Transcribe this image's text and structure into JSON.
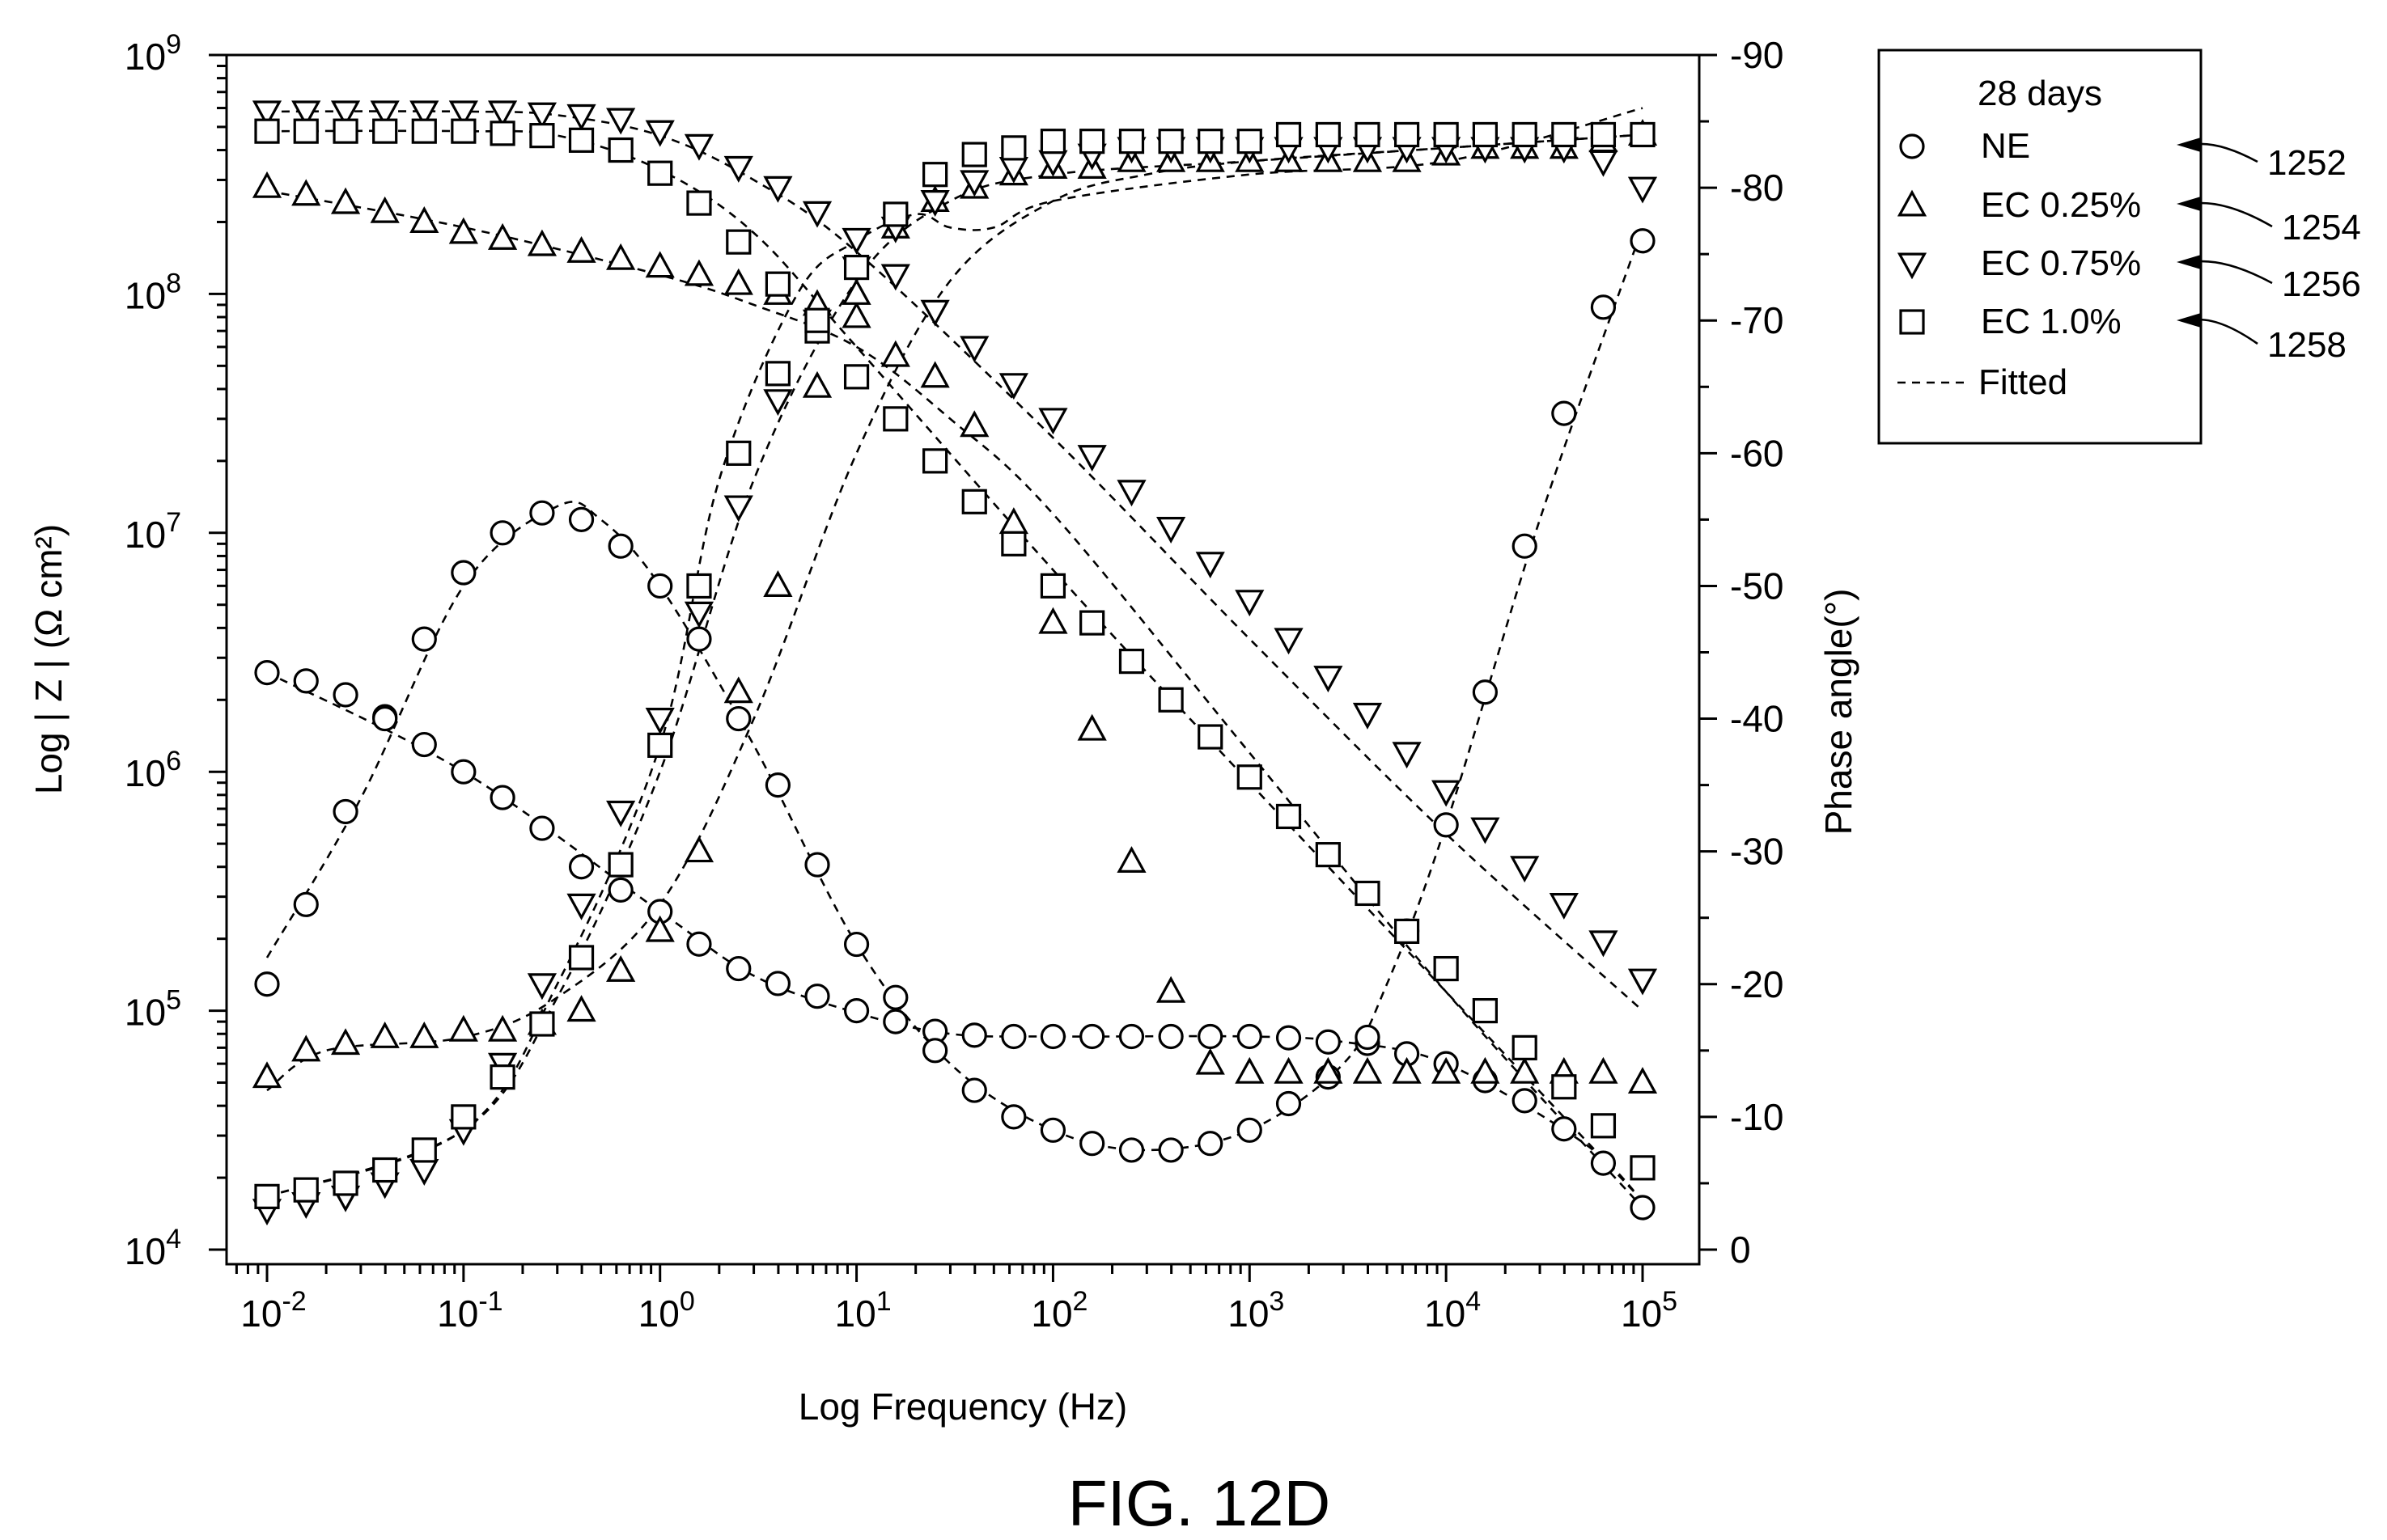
{
  "chart_data": {
    "type": "scatter",
    "title": "",
    "xlabel": "Log Frequency (Hz)",
    "ylabel": "Log | Z | (Ω cm²)",
    "y2label": "Phase angle(°)",
    "xscale": "log",
    "yscale": "log",
    "xlim": [
      0.01,
      100000
    ],
    "ylim": [
      10000,
      1000000000
    ],
    "y2lim": [
      0,
      -90
    ],
    "x_ticks": [
      {
        "base": "10",
        "exp": "-2",
        "value": 0.01
      },
      {
        "base": "10",
        "exp": "-1",
        "value": 0.1
      },
      {
        "base": "10",
        "exp": "0",
        "value": 1
      },
      {
        "base": "10",
        "exp": "1",
        "value": 10
      },
      {
        "base": "10",
        "exp": "2",
        "value": 100
      },
      {
        "base": "10",
        "exp": "3",
        "value": 1000
      },
      {
        "base": "10",
        "exp": "4",
        "value": 10000
      },
      {
        "base": "10",
        "exp": "5",
        "value": 100000
      }
    ],
    "y_ticks": [
      {
        "base": "10",
        "exp": "4",
        "value": 10000
      },
      {
        "base": "10",
        "exp": "5",
        "value": 100000
      },
      {
        "base": "10",
        "exp": "6",
        "value": 1000000
      },
      {
        "base": "10",
        "exp": "7",
        "value": 10000000
      },
      {
        "base": "10",
        "exp": "8",
        "value": 100000000
      },
      {
        "base": "10",
        "exp": "9",
        "value": 1000000000
      }
    ],
    "y2_ticks": [
      "0",
      "-10",
      "-20",
      "-30",
      "-40",
      "-50",
      "-60",
      "-70",
      "-80",
      "-90"
    ],
    "legend": {
      "title": "28 days",
      "position": "outside-top-right",
      "entries": [
        {
          "marker": "circle",
          "label": "NE",
          "ref": "1252"
        },
        {
          "marker": "triangle-up",
          "label": "EC 0.25%",
          "ref": "1254"
        },
        {
          "marker": "triangle-down",
          "label": "EC 0.75%",
          "ref": "1256"
        },
        {
          "marker": "square",
          "label": "EC 1.0%",
          "ref": "1258"
        },
        {
          "marker": "dashed-line",
          "label": "Fitted",
          "ref": ""
        }
      ]
    },
    "x": [
      0.01,
      0.0158,
      0.0251,
      0.0398,
      0.0631,
      0.1,
      0.158,
      0.251,
      0.398,
      0.631,
      1,
      1.58,
      2.51,
      3.98,
      6.31,
      10,
      15.8,
      25.1,
      39.8,
      63.1,
      100,
      158,
      251,
      398,
      631,
      1000,
      1580,
      2510,
      3980,
      6310,
      10000,
      15800,
      25100,
      39800,
      63100,
      100000
    ],
    "series": [
      {
        "name": "NE",
        "marker": "circle",
        "axis": "left",
        "measure": "|Z|",
        "values": [
          2600000,
          2400000,
          2100000,
          1700000,
          1300000,
          1000000,
          780000,
          580000,
          400000,
          320000,
          260000,
          190000,
          150000,
          130000,
          115000,
          100000,
          90000,
          82000,
          79000,
          78000,
          78000,
          78000,
          78000,
          78000,
          78000,
          78000,
          77000,
          74000,
          73000,
          66000,
          60000,
          51000,
          42000,
          32000,
          23000,
          15000
        ]
      },
      {
        "name": "NE",
        "marker": "circle",
        "axis": "right",
        "measure": "phase",
        "values": [
          -20,
          -26,
          -33,
          -40,
          -46,
          -51,
          -54,
          -55.5,
          -55,
          -53,
          -50,
          -46,
          -40,
          -35,
          -29,
          -23,
          -19,
          -15,
          -12,
          -10,
          -9,
          -8,
          -7.5,
          -7.5,
          -8,
          -9,
          -11,
          -13,
          -16,
          -24,
          -32,
          -42,
          -53,
          -63,
          -71,
          -76
        ]
      },
      {
        "name": "EC 0.25%",
        "marker": "triangle-up",
        "axis": "left",
        "measure": "|Z|",
        "values": [
          280000000,
          260000000,
          240000000,
          220000000,
          200000000,
          180000000,
          170000000,
          160000000,
          150000000,
          140000000,
          130000000,
          120000000,
          110000000,
          100000000,
          90000000,
          80000000,
          55000000,
          45000000,
          28000000,
          11000000,
          4200000,
          1500000,
          420000,
          120000,
          60000,
          55000,
          55000,
          55000,
          55000,
          55000,
          55000,
          55000,
          55000,
          55000,
          55000,
          50000
        ]
      },
      {
        "name": "EC 0.25%",
        "marker": "triangle-up",
        "axis": "right",
        "measure": "phase",
        "values": [
          -13,
          -15,
          -15.5,
          -16,
          -16,
          -16.5,
          -16.5,
          -17,
          -18,
          -21,
          -24,
          -30,
          -42,
          -50,
          -65,
          -72,
          -77,
          -79,
          -80,
          -81,
          -81.5,
          -81.5,
          -82,
          -82,
          -82,
          -82,
          -82,
          -82,
          -82,
          -82,
          -82.5,
          -83,
          -83,
          -83,
          -83.5,
          -84
        ]
      },
      {
        "name": "EC 0.75%",
        "marker": "triangle-down",
        "axis": "left",
        "measure": "|Z|",
        "values": [
          580000000,
          580000000,
          580000000,
          580000000,
          580000000,
          580000000,
          580000000,
          570000000,
          560000000,
          540000000,
          480000000,
          420000000,
          340000000,
          280000000,
          220000000,
          170000000,
          120000000,
          85000000,
          60000000,
          42000000,
          30000000,
          21000000,
          15000000,
          10500000,
          7500000,
          5200000,
          3600000,
          2500000,
          1750000,
          1200000,
          830000,
          580000,
          400000,
          280000,
          195000,
          135000
        ]
      },
      {
        "name": "EC 0.75%",
        "marker": "triangle-down",
        "axis": "right",
        "measure": "phase",
        "values": [
          -3,
          -3.5,
          -4,
          -5,
          -6,
          -9,
          -14,
          -20,
          -26,
          -33,
          -40,
          -48,
          -56,
          -64,
          -70,
          -74,
          -77,
          -79,
          -80.5,
          -81.5,
          -82,
          -82.5,
          -83,
          -83,
          -83,
          -83,
          -83,
          -83,
          -83,
          -83,
          -83,
          -83,
          -83,
          -83,
          -82,
          -80
        ]
      },
      {
        "name": "EC 1.0%",
        "marker": "square",
        "axis": "left",
        "measure": "|Z|",
        "values": [
          480000000,
          480000000,
          480000000,
          480000000,
          480000000,
          480000000,
          470000000,
          460000000,
          440000000,
          400000000,
          320000000,
          240000000,
          165000000,
          110000000,
          70000000,
          45000000,
          30000000,
          20000000,
          13500000,
          9000000,
          6000000,
          4200000,
          2900000,
          2000000,
          1400000,
          950000,
          650000,
          450000,
          310000,
          215000,
          150000,
          100000,
          70000,
          48000,
          33000,
          22000
        ]
      },
      {
        "name": "EC 1.0%",
        "marker": "square",
        "axis": "right",
        "measure": "phase",
        "values": [
          -4,
          -4.5,
          -5,
          -6,
          -7.5,
          -10,
          -13,
          -17,
          -22,
          -29,
          -38,
          -50,
          -60,
          -66,
          -70,
          -74,
          -78,
          -81,
          -82.5,
          -83,
          -83.5,
          -83.5,
          -83.5,
          -83.5,
          -83.5,
          -83.5,
          -84,
          -84,
          -84,
          -84,
          -84,
          -84,
          -84,
          -84,
          -84,
          -84
        ]
      }
    ],
    "fitted_curves": [
      {
        "name": "NE",
        "axis": "left",
        "x": [
          0.01,
          0.1,
          1,
          3,
          10,
          30,
          100,
          1000,
          3000,
          10000,
          50000,
          100000
        ],
        "values": [
          2600000,
          1000000,
          260000,
          140000,
          98000,
          80000,
          78000,
          78000,
          74000,
          60000,
          28000,
          16000
        ]
      },
      {
        "name": "NE",
        "axis": "right",
        "x": [
          0.01,
          0.03,
          0.1,
          0.3,
          0.5,
          1,
          3,
          10,
          30,
          100,
          300,
          1000,
          3000,
          5000,
          10000,
          30000,
          100000
        ],
        "values": [
          -22,
          -34,
          -50,
          -56,
          -55,
          -50,
          -38,
          -23,
          -14,
          -9,
          -7.5,
          -9,
          -14,
          -20,
          -32,
          -55,
          -77
        ]
      },
      {
        "name": "EC 0.25%",
        "axis": "left",
        "x": [
          0.01,
          0.1,
          1,
          3,
          10,
          30,
          100,
          1000,
          10000,
          100000
        ],
        "values": [
          270000000,
          190000000,
          120000000,
          90000000,
          60000000,
          30000000,
          12000000,
          1200000,
          120000,
          15000
        ]
      },
      {
        "name": "EC 0.25%",
        "axis": "right",
        "x": [
          0.01,
          0.02,
          0.1,
          0.3,
          1,
          3,
          10,
          30,
          100,
          300,
          1000,
          10000,
          100000
        ],
        "values": [
          -12,
          -15,
          -16,
          -19,
          -26,
          -40,
          -60,
          -73,
          -79,
          -81,
          -82,
          -83,
          -84
        ]
      },
      {
        "name": "EC 0.75%",
        "axis": "left",
        "x": [
          0.01,
          0.1,
          0.3,
          1,
          3,
          10,
          100,
          1000,
          10000,
          100000
        ],
        "values": [
          580000000,
          580000000,
          560000000,
          460000000,
          300000000,
          150000000,
          25000000,
          3600000,
          550000,
          100000
        ]
      },
      {
        "name": "EC 0.75%",
        "axis": "right",
        "x": [
          0.01,
          0.1,
          0.3,
          1,
          2,
          5,
          10,
          20,
          30,
          50,
          100,
          1000,
          10000,
          100000
        ],
        "values": [
          -4,
          -9,
          -20,
          -38,
          -58,
          -72,
          -76,
          -78,
          -77,
          -77,
          -79,
          -81,
          -82,
          -86
        ]
      },
      {
        "name": "EC 1.0%",
        "axis": "left",
        "x": [
          0.01,
          0.1,
          0.3,
          1,
          3,
          10,
          100,
          1000,
          10000,
          100000
        ],
        "values": [
          480000000,
          480000000,
          460000000,
          330000000,
          180000000,
          60000000,
          7000000,
          900000,
          120000,
          16000
        ]
      },
      {
        "name": "EC 1.0%",
        "axis": "right",
        "x": [
          0.01,
          0.1,
          0.3,
          1,
          3,
          10,
          30,
          100,
          1000,
          10000,
          100000
        ],
        "values": [
          -4,
          -9,
          -19,
          -36,
          -58,
          -73,
          -79,
          -81,
          -82,
          -83,
          -84
        ]
      }
    ],
    "grid": false,
    "caption": "FIG. 12D"
  }
}
